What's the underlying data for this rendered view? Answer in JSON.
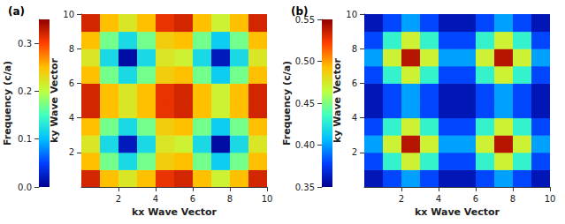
{
  "chart_data": [
    {
      "type": "heatmap",
      "title": "(a)",
      "x_label": "kx Wave Vector",
      "y_label": "ky Wave Vector",
      "z_label": "Frequency (c/a)",
      "x": [
        0.5,
        1.5,
        2.5,
        3.5,
        4.5,
        5.5,
        6.5,
        7.5,
        8.5,
        9.5
      ],
      "y": [
        0.5,
        1.5,
        2.5,
        3.5,
        4.5,
        5.5,
        6.5,
        7.5,
        8.5,
        9.5
      ],
      "z": [
        [
          0.32,
          0.25,
          0.22,
          0.25,
          0.31,
          0.32,
          0.25,
          0.21,
          0.25,
          0.32
        ],
        [
          0.25,
          0.17,
          0.12,
          0.17,
          0.24,
          0.25,
          0.17,
          0.11,
          0.17,
          0.25
        ],
        [
          0.22,
          0.12,
          0.02,
          0.12,
          0.22,
          0.21,
          0.12,
          0.01,
          0.12,
          0.22
        ],
        [
          0.25,
          0.17,
          0.12,
          0.17,
          0.24,
          0.25,
          0.17,
          0.11,
          0.17,
          0.25
        ],
        [
          0.32,
          0.25,
          0.22,
          0.25,
          0.31,
          0.32,
          0.25,
          0.21,
          0.25,
          0.32
        ],
        [
          0.32,
          0.25,
          0.22,
          0.25,
          0.31,
          0.32,
          0.25,
          0.21,
          0.25,
          0.32
        ],
        [
          0.25,
          0.17,
          0.12,
          0.17,
          0.24,
          0.25,
          0.17,
          0.11,
          0.17,
          0.25
        ],
        [
          0.22,
          0.12,
          0.01,
          0.12,
          0.22,
          0.21,
          0.12,
          0.02,
          0.12,
          0.22
        ],
        [
          0.25,
          0.17,
          0.12,
          0.17,
          0.24,
          0.25,
          0.17,
          0.11,
          0.17,
          0.25
        ],
        [
          0.32,
          0.25,
          0.22,
          0.25,
          0.31,
          0.32,
          0.25,
          0.21,
          0.25,
          0.32
        ]
      ],
      "xlim": [
        0,
        10
      ],
      "xticks": [
        2,
        4,
        6,
        8,
        10
      ],
      "ylim": [
        0,
        10
      ],
      "yticks": [
        2,
        4,
        6,
        8,
        10
      ],
      "zlim": [
        0,
        0.35
      ],
      "zticks": [
        {
          "value": 0,
          "label": "0.0"
        },
        0.1,
        0.2,
        0.3
      ]
    },
    {
      "type": "heatmap",
      "title": "(b)",
      "x_label": "kx Wave Vector",
      "y_label": "ky Wave Vector",
      "z_label": "Frequency (c/a)",
      "x": [
        0.5,
        1.5,
        2.5,
        3.5,
        4.5,
        5.5,
        6.5,
        7.5,
        8.5,
        9.5
      ],
      "y": [
        0.5,
        1.5,
        2.5,
        3.5,
        4.5,
        5.5,
        6.5,
        7.5,
        8.5,
        9.5
      ],
      "z": [
        [
          0.36,
          0.38,
          0.4,
          0.38,
          0.36,
          0.36,
          0.38,
          0.4,
          0.38,
          0.36
        ],
        [
          0.38,
          0.43,
          0.47,
          0.43,
          0.38,
          0.38,
          0.43,
          0.47,
          0.43,
          0.38
        ],
        [
          0.4,
          0.47,
          0.54,
          0.47,
          0.4,
          0.4,
          0.47,
          0.54,
          0.47,
          0.4
        ],
        [
          0.38,
          0.43,
          0.47,
          0.43,
          0.38,
          0.38,
          0.43,
          0.47,
          0.43,
          0.38
        ],
        [
          0.36,
          0.38,
          0.4,
          0.38,
          0.36,
          0.36,
          0.38,
          0.4,
          0.38,
          0.36
        ],
        [
          0.36,
          0.38,
          0.4,
          0.38,
          0.36,
          0.36,
          0.38,
          0.4,
          0.38,
          0.36
        ],
        [
          0.38,
          0.43,
          0.47,
          0.43,
          0.38,
          0.38,
          0.43,
          0.47,
          0.43,
          0.38
        ],
        [
          0.4,
          0.47,
          0.54,
          0.47,
          0.4,
          0.4,
          0.47,
          0.54,
          0.47,
          0.4
        ],
        [
          0.38,
          0.43,
          0.47,
          0.43,
          0.38,
          0.38,
          0.43,
          0.47,
          0.43,
          0.38
        ],
        [
          0.36,
          0.38,
          0.4,
          0.38,
          0.36,
          0.36,
          0.38,
          0.4,
          0.38,
          0.36
        ]
      ],
      "xlim": [
        0,
        10
      ],
      "xticks": [
        2,
        4,
        6,
        8,
        10
      ],
      "ylim": [
        0,
        10
      ],
      "yticks": [
        2,
        4,
        6,
        8,
        10
      ],
      "zlim": [
        0.35,
        0.55
      ],
      "zticks": [
        0.35,
        {
          "value": 0.4,
          "label": "0.40"
        },
        0.45,
        {
          "value": 0.5,
          "label": "0.50"
        },
        0.55
      ]
    }
  ]
}
